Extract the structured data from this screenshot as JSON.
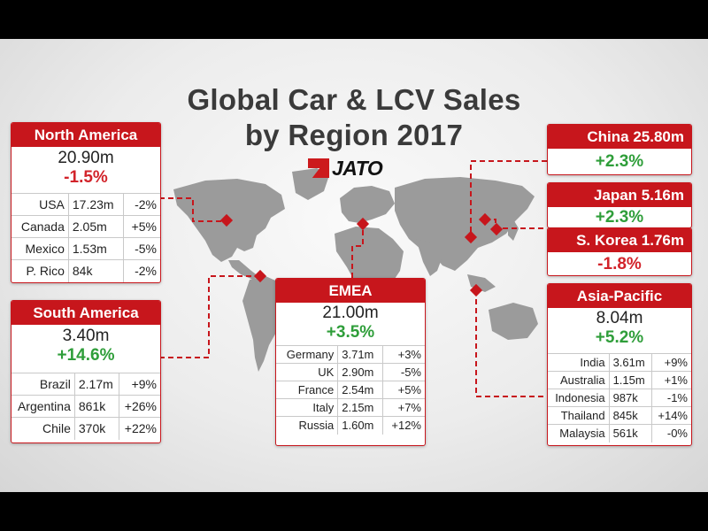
{
  "title": {
    "line1": "Global Car & LCV Sales",
    "line2": "by Region 2017"
  },
  "logo": {
    "text": "JATO",
    "icon": "jato-logo-icon"
  },
  "colors": {
    "accent": "#c7161c",
    "positive": "#2f9e3a",
    "negative": "#d2232a",
    "map": "#9b9b9b",
    "connector": "#c7161c"
  },
  "north_america": {
    "name": "North America",
    "total": "20.90m",
    "change": "-1.5%",
    "rows": [
      {
        "country": "USA",
        "value": "17.23m",
        "change": "-2%"
      },
      {
        "country": "Canada",
        "value": "2.05m",
        "change": "+5%"
      },
      {
        "country": "Mexico",
        "value": "1.53m",
        "change": "-5%"
      },
      {
        "country": "P. Rico",
        "value": "84k",
        "change": "-2%"
      }
    ]
  },
  "south_america": {
    "name": "South America",
    "total": "3.40m",
    "change": "+14.6%",
    "rows": [
      {
        "country": "Brazil",
        "value": "2.17m",
        "change": "+9%"
      },
      {
        "country": "Argentina",
        "value": "861k",
        "change": "+26%"
      },
      {
        "country": "Chile",
        "value": "370k",
        "change": "+22%"
      }
    ]
  },
  "emea": {
    "name": "EMEA",
    "total": "21.00m",
    "change": "+3.5%",
    "rows": [
      {
        "country": "Germany",
        "value": "3.71m",
        "change": "+3%"
      },
      {
        "country": "UK",
        "value": "2.90m",
        "change": "-5%"
      },
      {
        "country": "France",
        "value": "2.54m",
        "change": "+5%"
      },
      {
        "country": "Italy",
        "value": "2.15m",
        "change": "+7%"
      },
      {
        "country": "Russia",
        "value": "1.60m",
        "change": "+12%"
      }
    ]
  },
  "china": {
    "name": "China 25.80m",
    "change": "+2.3%"
  },
  "japan": {
    "name": "Japan 5.16m",
    "change": "+2.3%"
  },
  "korea": {
    "name": "S. Korea 1.76m",
    "change": "-1.8%"
  },
  "asia_pacific": {
    "name": "Asia-Pacific",
    "total": "8.04m",
    "change": "+5.2%",
    "rows": [
      {
        "country": "India",
        "value": "3.61m",
        "change": "+9%"
      },
      {
        "country": "Australia",
        "value": "1.15m",
        "change": "+1%"
      },
      {
        "country": "Indonesia",
        "value": "987k",
        "change": "-1%"
      },
      {
        "country": "Thailand",
        "value": "845k",
        "change": "+14%"
      },
      {
        "country": "Malaysia",
        "value": "561k",
        "change": "-0%"
      }
    ]
  }
}
